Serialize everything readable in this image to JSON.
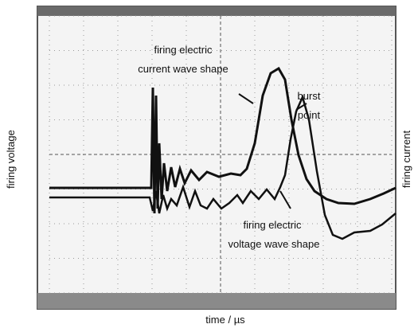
{
  "axis_labels": {
    "left": "firing voltage",
    "right": "firing current",
    "bottom": "time / µs"
  },
  "annotations": {
    "current_wave": [
      "firing electric",
      "current  wave shape"
    ],
    "burst_point": [
      "burst",
      "point"
    ],
    "voltage_wave": [
      "firing electric",
      "voltage wave shape"
    ]
  }
}
